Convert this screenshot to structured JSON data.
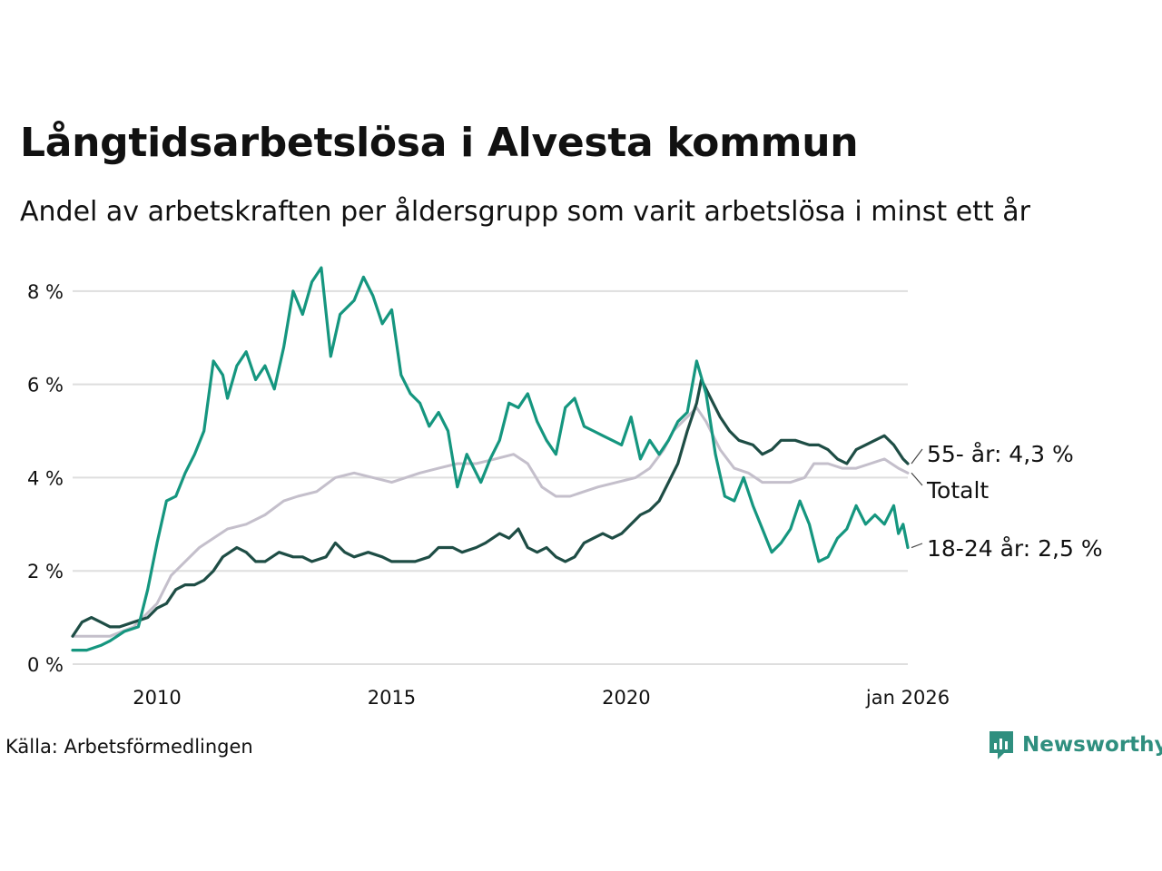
{
  "title": "Långtidsarbetslösa i Alvesta kommun",
  "subtitle": "Andel av arbetskraften per åldersgrupp som varit arbetslösa i minst ett år",
  "source": "Källa: Arbetsförmedlingen",
  "brand": {
    "name": "Newsworthy",
    "icon": "newsworthy-logo-icon"
  },
  "colors": {
    "total": "#c4bfcb",
    "age55": "#1e4d45",
    "age1824": "#15967f",
    "grid": "#dedede",
    "text": "#111111"
  },
  "chart_data": {
    "type": "line",
    "title": "Långtidsarbetslösa i Alvesta kommun",
    "xlabel": "",
    "ylabel": "",
    "xlim": [
      2008.2,
      2026.0
    ],
    "ylim": [
      0,
      8.6
    ],
    "y_ticks": [
      {
        "value": 0,
        "label": "0 %"
      },
      {
        "value": 2,
        "label": "2 %"
      },
      {
        "value": 4,
        "label": "4 %"
      },
      {
        "value": 6,
        "label": "6 %"
      },
      {
        "value": 8,
        "label": "8 %"
      }
    ],
    "x_ticks": [
      {
        "value": 2010,
        "label": "2010"
      },
      {
        "value": 2015,
        "label": "2015"
      },
      {
        "value": 2020,
        "label": "2020"
      },
      {
        "value": 2026,
        "label": "jan 2026"
      }
    ],
    "series": [
      {
        "name": "Totalt",
        "key": "total",
        "end_label": "Totalt",
        "points": [
          [
            2008.2,
            0.6
          ],
          [
            2008.5,
            0.6
          ],
          [
            2009.0,
            0.6
          ],
          [
            2009.5,
            0.8
          ],
          [
            2010.0,
            1.3
          ],
          [
            2010.3,
            1.9
          ],
          [
            2010.6,
            2.2
          ],
          [
            2010.9,
            2.5
          ],
          [
            2011.2,
            2.7
          ],
          [
            2011.5,
            2.9
          ],
          [
            2011.9,
            3.0
          ],
          [
            2012.3,
            3.2
          ],
          [
            2012.7,
            3.5
          ],
          [
            2013.0,
            3.6
          ],
          [
            2013.4,
            3.7
          ],
          [
            2013.8,
            4.0
          ],
          [
            2014.2,
            4.1
          ],
          [
            2014.6,
            4.0
          ],
          [
            2015.0,
            3.9
          ],
          [
            2015.3,
            4.0
          ],
          [
            2015.6,
            4.1
          ],
          [
            2016.0,
            4.2
          ],
          [
            2016.4,
            4.3
          ],
          [
            2016.8,
            4.3
          ],
          [
            2017.2,
            4.4
          ],
          [
            2017.6,
            4.5
          ],
          [
            2017.9,
            4.3
          ],
          [
            2018.2,
            3.8
          ],
          [
            2018.5,
            3.6
          ],
          [
            2018.8,
            3.6
          ],
          [
            2019.1,
            3.7
          ],
          [
            2019.4,
            3.8
          ],
          [
            2019.8,
            3.9
          ],
          [
            2020.2,
            4.0
          ],
          [
            2020.5,
            4.2
          ],
          [
            2020.8,
            4.6
          ],
          [
            2021.0,
            5.0
          ],
          [
            2021.3,
            5.3
          ],
          [
            2021.5,
            5.5
          ],
          [
            2021.7,
            5.2
          ],
          [
            2022.0,
            4.6
          ],
          [
            2022.3,
            4.2
          ],
          [
            2022.6,
            4.1
          ],
          [
            2022.9,
            3.9
          ],
          [
            2023.2,
            3.9
          ],
          [
            2023.5,
            3.9
          ],
          [
            2023.8,
            4.0
          ],
          [
            2024.0,
            4.3
          ],
          [
            2024.3,
            4.3
          ],
          [
            2024.6,
            4.2
          ],
          [
            2024.9,
            4.2
          ],
          [
            2025.2,
            4.3
          ],
          [
            2025.5,
            4.4
          ],
          [
            2025.8,
            4.2
          ],
          [
            2026.0,
            4.1
          ]
        ]
      },
      {
        "name": "55- år",
        "key": "age55",
        "end_label": "55- år: 4,3 %",
        "last_value": 4.3,
        "points": [
          [
            2008.2,
            0.6
          ],
          [
            2008.4,
            0.9
          ],
          [
            2008.6,
            1.0
          ],
          [
            2008.8,
            0.9
          ],
          [
            2009.0,
            0.8
          ],
          [
            2009.2,
            0.8
          ],
          [
            2009.5,
            0.9
          ],
          [
            2009.8,
            1.0
          ],
          [
            2010.0,
            1.2
          ],
          [
            2010.2,
            1.3
          ],
          [
            2010.4,
            1.6
          ],
          [
            2010.6,
            1.7
          ],
          [
            2010.8,
            1.7
          ],
          [
            2011.0,
            1.8
          ],
          [
            2011.2,
            2.0
          ],
          [
            2011.4,
            2.3
          ],
          [
            2011.7,
            2.5
          ],
          [
            2011.9,
            2.4
          ],
          [
            2012.1,
            2.2
          ],
          [
            2012.3,
            2.2
          ],
          [
            2012.6,
            2.4
          ],
          [
            2012.9,
            2.3
          ],
          [
            2013.1,
            2.3
          ],
          [
            2013.3,
            2.2
          ],
          [
            2013.6,
            2.3
          ],
          [
            2013.8,
            2.6
          ],
          [
            2014.0,
            2.4
          ],
          [
            2014.2,
            2.3
          ],
          [
            2014.5,
            2.4
          ],
          [
            2014.8,
            2.3
          ],
          [
            2015.0,
            2.2
          ],
          [
            2015.2,
            2.2
          ],
          [
            2015.5,
            2.2
          ],
          [
            2015.8,
            2.3
          ],
          [
            2016.0,
            2.5
          ],
          [
            2016.3,
            2.5
          ],
          [
            2016.5,
            2.4
          ],
          [
            2016.8,
            2.5
          ],
          [
            2017.0,
            2.6
          ],
          [
            2017.3,
            2.8
          ],
          [
            2017.5,
            2.7
          ],
          [
            2017.7,
            2.9
          ],
          [
            2017.9,
            2.5
          ],
          [
            2018.1,
            2.4
          ],
          [
            2018.3,
            2.5
          ],
          [
            2018.5,
            2.3
          ],
          [
            2018.7,
            2.2
          ],
          [
            2018.9,
            2.3
          ],
          [
            2019.1,
            2.6
          ],
          [
            2019.3,
            2.7
          ],
          [
            2019.5,
            2.8
          ],
          [
            2019.7,
            2.7
          ],
          [
            2019.9,
            2.8
          ],
          [
            2020.1,
            3.0
          ],
          [
            2020.3,
            3.2
          ],
          [
            2020.5,
            3.3
          ],
          [
            2020.7,
            3.5
          ],
          [
            2020.9,
            3.9
          ],
          [
            2021.1,
            4.3
          ],
          [
            2021.3,
            5.0
          ],
          [
            2021.5,
            5.6
          ],
          [
            2021.6,
            6.1
          ],
          [
            2021.8,
            5.7
          ],
          [
            2022.0,
            5.3
          ],
          [
            2022.2,
            5.0
          ],
          [
            2022.4,
            4.8
          ],
          [
            2022.7,
            4.7
          ],
          [
            2022.9,
            4.5
          ],
          [
            2023.1,
            4.6
          ],
          [
            2023.3,
            4.8
          ],
          [
            2023.6,
            4.8
          ],
          [
            2023.9,
            4.7
          ],
          [
            2024.1,
            4.7
          ],
          [
            2024.3,
            4.6
          ],
          [
            2024.5,
            4.4
          ],
          [
            2024.7,
            4.3
          ],
          [
            2024.9,
            4.6
          ],
          [
            2025.1,
            4.7
          ],
          [
            2025.3,
            4.8
          ],
          [
            2025.5,
            4.9
          ],
          [
            2025.7,
            4.7
          ],
          [
            2025.9,
            4.4
          ],
          [
            2026.0,
            4.3
          ]
        ]
      },
      {
        "name": "18-24 år",
        "key": "age1824",
        "end_label": "18-24 år: 2,5 %",
        "last_value": 2.5,
        "points": [
          [
            2008.2,
            0.3
          ],
          [
            2008.5,
            0.3
          ],
          [
            2008.8,
            0.4
          ],
          [
            2009.0,
            0.5
          ],
          [
            2009.3,
            0.7
          ],
          [
            2009.6,
            0.8
          ],
          [
            2009.8,
            1.6
          ],
          [
            2010.0,
            2.6
          ],
          [
            2010.2,
            3.5
          ],
          [
            2010.4,
            3.6
          ],
          [
            2010.6,
            4.1
          ],
          [
            2010.8,
            4.5
          ],
          [
            2011.0,
            5.0
          ],
          [
            2011.2,
            6.5
          ],
          [
            2011.4,
            6.2
          ],
          [
            2011.5,
            5.7
          ],
          [
            2011.7,
            6.4
          ],
          [
            2011.9,
            6.7
          ],
          [
            2012.1,
            6.1
          ],
          [
            2012.3,
            6.4
          ],
          [
            2012.5,
            5.9
          ],
          [
            2012.7,
            6.8
          ],
          [
            2012.9,
            8.0
          ],
          [
            2013.1,
            7.5
          ],
          [
            2013.3,
            8.2
          ],
          [
            2013.5,
            8.5
          ],
          [
            2013.7,
            6.6
          ],
          [
            2013.9,
            7.5
          ],
          [
            2014.2,
            7.8
          ],
          [
            2014.4,
            8.3
          ],
          [
            2014.6,
            7.9
          ],
          [
            2014.8,
            7.3
          ],
          [
            2015.0,
            7.6
          ],
          [
            2015.2,
            6.2
          ],
          [
            2015.4,
            5.8
          ],
          [
            2015.6,
            5.6
          ],
          [
            2015.8,
            5.1
          ],
          [
            2016.0,
            5.4
          ],
          [
            2016.2,
            5.0
          ],
          [
            2016.4,
            3.8
          ],
          [
            2016.6,
            4.5
          ],
          [
            2016.9,
            3.9
          ],
          [
            2017.1,
            4.4
          ],
          [
            2017.3,
            4.8
          ],
          [
            2017.5,
            5.6
          ],
          [
            2017.7,
            5.5
          ],
          [
            2017.9,
            5.8
          ],
          [
            2018.1,
            5.2
          ],
          [
            2018.3,
            4.8
          ],
          [
            2018.5,
            4.5
          ],
          [
            2018.7,
            5.5
          ],
          [
            2018.9,
            5.7
          ],
          [
            2019.1,
            5.1
          ],
          [
            2019.3,
            5.0
          ],
          [
            2019.5,
            4.9
          ],
          [
            2019.7,
            4.8
          ],
          [
            2019.9,
            4.7
          ],
          [
            2020.1,
            5.3
          ],
          [
            2020.3,
            4.4
          ],
          [
            2020.5,
            4.8
          ],
          [
            2020.7,
            4.5
          ],
          [
            2020.9,
            4.8
          ],
          [
            2021.1,
            5.2
          ],
          [
            2021.3,
            5.4
          ],
          [
            2021.5,
            6.5
          ],
          [
            2021.7,
            5.8
          ],
          [
            2021.9,
            4.5
          ],
          [
            2022.1,
            3.6
          ],
          [
            2022.3,
            3.5
          ],
          [
            2022.5,
            4.0
          ],
          [
            2022.7,
            3.4
          ],
          [
            2022.9,
            2.9
          ],
          [
            2023.1,
            2.4
          ],
          [
            2023.3,
            2.6
          ],
          [
            2023.5,
            2.9
          ],
          [
            2023.7,
            3.5
          ],
          [
            2023.9,
            3.0
          ],
          [
            2024.1,
            2.2
          ],
          [
            2024.3,
            2.3
          ],
          [
            2024.5,
            2.7
          ],
          [
            2024.7,
            2.9
          ],
          [
            2024.9,
            3.4
          ],
          [
            2025.1,
            3.0
          ],
          [
            2025.3,
            3.2
          ],
          [
            2025.5,
            3.0
          ],
          [
            2025.7,
            3.4
          ],
          [
            2025.8,
            2.8
          ],
          [
            2025.9,
            3.0
          ],
          [
            2026.0,
            2.5
          ]
        ]
      }
    ]
  }
}
